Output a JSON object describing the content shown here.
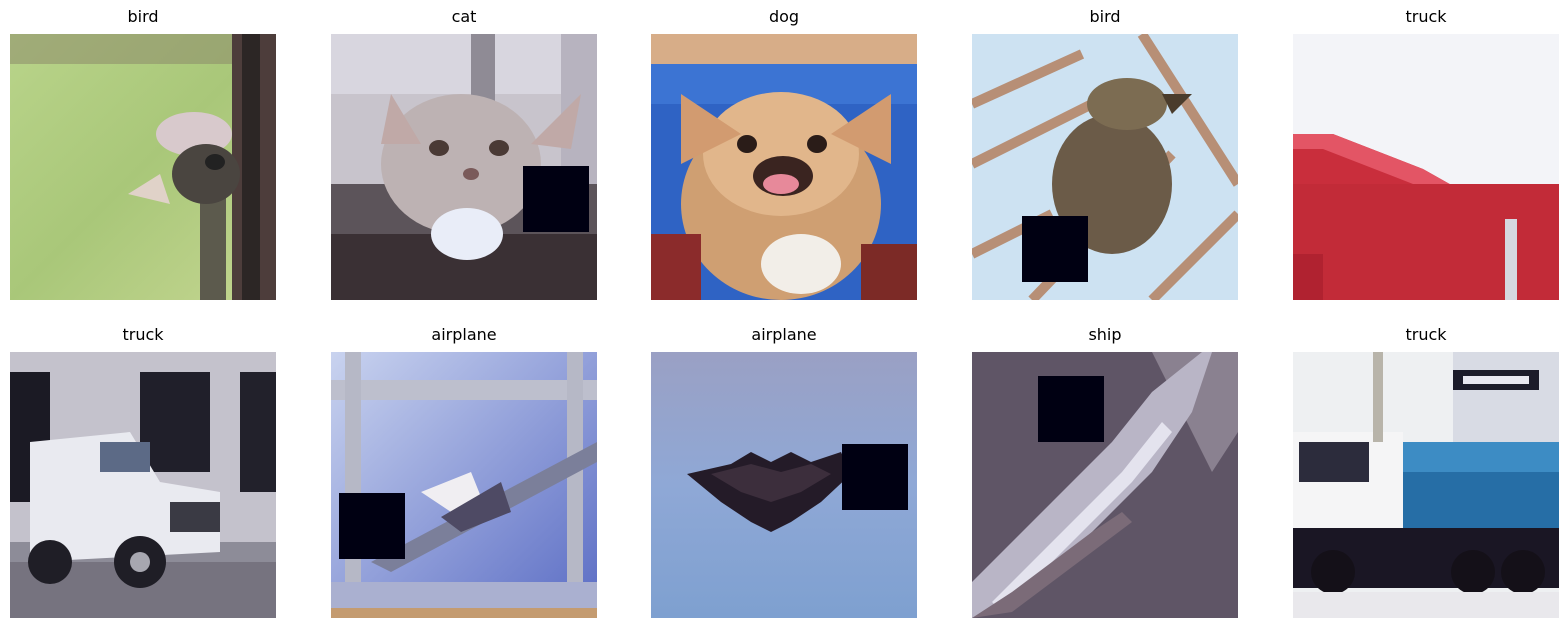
{
  "panels": [
    {
      "label": "bird",
      "description": "ostrich head against green background with vertical dark pole"
    },
    {
      "label": "cat",
      "description": "grey and white kitten with black occlusion square at lower right"
    },
    {
      "label": "dog",
      "description": "small tan chihuahua with mouth open against blue background"
    },
    {
      "label": "bird",
      "description": "brown bird perched among branches, light blue sky, black occlusion square lower left"
    },
    {
      "label": "truck",
      "description": "red truck trailer against white sky"
    },
    {
      "label": "truck",
      "description": "white pickup truck parked by a building"
    },
    {
      "label": "airplane",
      "description": "airplane flying, blue sky through window frame, black occlusion square lower left"
    },
    {
      "label": "airplane",
      "description": "dark flying-wing aircraft on blue sky, black occlusion square right"
    },
    {
      "label": "ship",
      "description": "diagonal ship hull on grey-purple water, black occlusion square upper left"
    },
    {
      "label": "truck",
      "description": "white cab with blue dump bed truck, black occlusion bar upper right"
    }
  ],
  "colors": {
    "occlusion": "#000012"
  }
}
